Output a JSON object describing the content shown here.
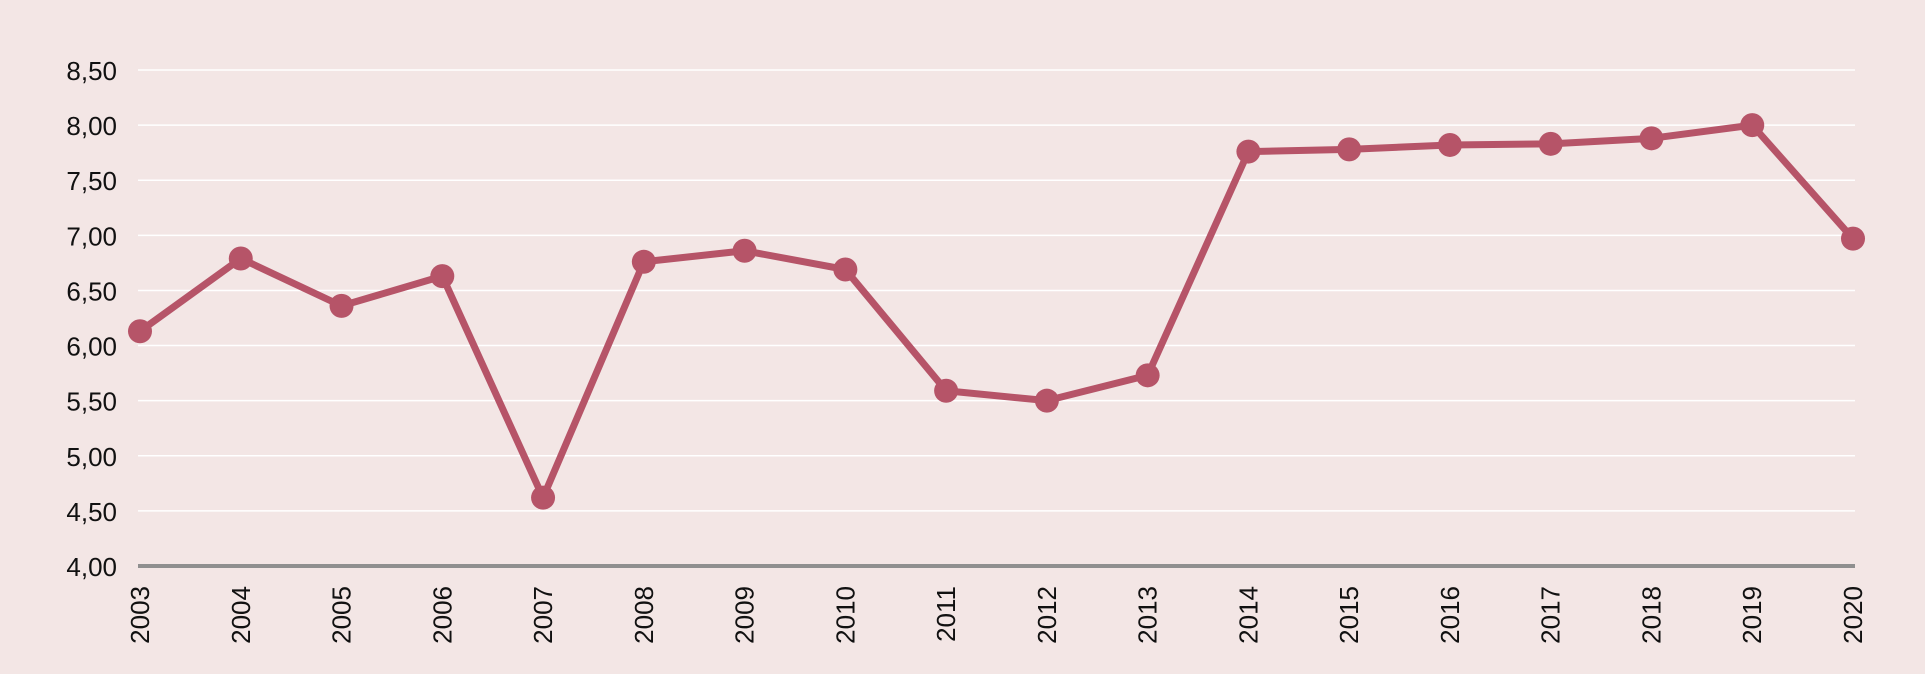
{
  "colors": {
    "background": "#f3e6e5",
    "series": "#b65468",
    "grid": "#ffffff",
    "axis": "#8f8f8f"
  },
  "chart_data": {
    "type": "line",
    "title": "",
    "xlabel": "",
    "ylabel": "",
    "x": [
      "2003",
      "2004",
      "2005",
      "2006",
      "2007",
      "2008",
      "2009",
      "2010",
      "2011",
      "2012",
      "2013",
      "2014",
      "2015",
      "2016",
      "2017",
      "2018",
      "2019",
      "2020"
    ],
    "series": [
      {
        "values": [
          6.13,
          6.79,
          6.36,
          6.63,
          4.62,
          6.76,
          6.86,
          6.69,
          5.59,
          5.5,
          5.73,
          7.76,
          7.78,
          7.82,
          7.83,
          7.88,
          8.0,
          6.97
        ]
      }
    ],
    "ylim": [
      4.0,
      8.5
    ],
    "yticks": [
      "4,00",
      "4,50",
      "5,00",
      "5,50",
      "6,00",
      "6,50",
      "7,00",
      "7,50",
      "8,00",
      "8,50"
    ],
    "grid": true,
    "legend": "none"
  }
}
